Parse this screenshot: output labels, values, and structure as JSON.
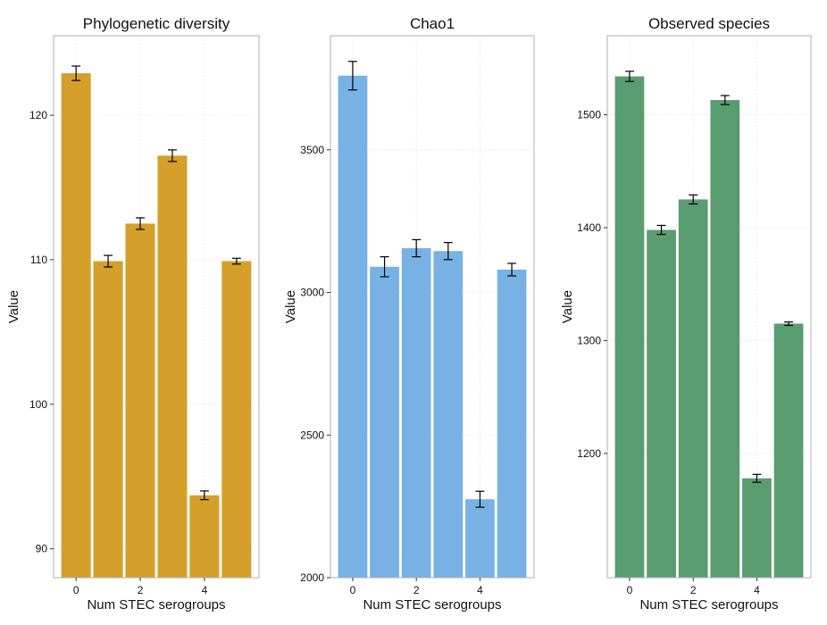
{
  "figure": {
    "background": "#ffffff",
    "gridline_color": "#e6e6e6",
    "panel_border_color": "#b0b0b0",
    "errorbar_color": "#000000"
  },
  "chart_data": [
    {
      "type": "bar",
      "title": "Phylogenetic diversity",
      "xlabel": "Num STEC serogroups",
      "ylabel": "Value",
      "color": "#D4A02A",
      "x": [
        0,
        1,
        2,
        3,
        4,
        5
      ],
      "values": [
        122.9,
        109.9,
        112.5,
        117.2,
        93.7,
        109.9
      ],
      "errors": [
        0.5,
        0.4,
        0.4,
        0.4,
        0.3,
        0.2
      ],
      "ylim": [
        88,
        125.5
      ],
      "yticks": [
        90,
        100,
        110,
        120
      ],
      "xlim": [
        -0.7,
        5.7
      ],
      "xticks": [
        0,
        2,
        4
      ],
      "grid": true,
      "legend": false
    },
    {
      "type": "bar",
      "title": "Chao1",
      "xlabel": "Num STEC serogroups",
      "ylabel": "Value",
      "color": "#78B2E4",
      "x": [
        0,
        1,
        2,
        3,
        4,
        5
      ],
      "values": [
        3760,
        3090,
        3155,
        3145,
        2275,
        3080
      ],
      "errors": [
        50,
        35,
        30,
        30,
        28,
        22
      ],
      "ylim": [
        2000,
        3900
      ],
      "yticks": [
        2000,
        2500,
        3000,
        3500
      ],
      "xlim": [
        -0.7,
        5.7
      ],
      "xticks": [
        0,
        2,
        4
      ],
      "grid": true,
      "legend": false
    },
    {
      "type": "bar",
      "title": "Observed species",
      "xlabel": "Num STEC serogroups",
      "ylabel": "Value",
      "color": "#599C70",
      "x": [
        0,
        1,
        2,
        3,
        4,
        5
      ],
      "values": [
        1534,
        1398,
        1425,
        1513,
        1178,
        1315
      ],
      "errors": [
        4.5,
        4,
        4,
        4,
        3.5,
        1.5
      ],
      "ylim": [
        1090,
        1570
      ],
      "yticks": [
        1200,
        1300,
        1400,
        1500
      ],
      "xlim": [
        -0.7,
        5.7
      ],
      "xticks": [
        0,
        2,
        4
      ],
      "grid": true,
      "legend": false
    }
  ]
}
